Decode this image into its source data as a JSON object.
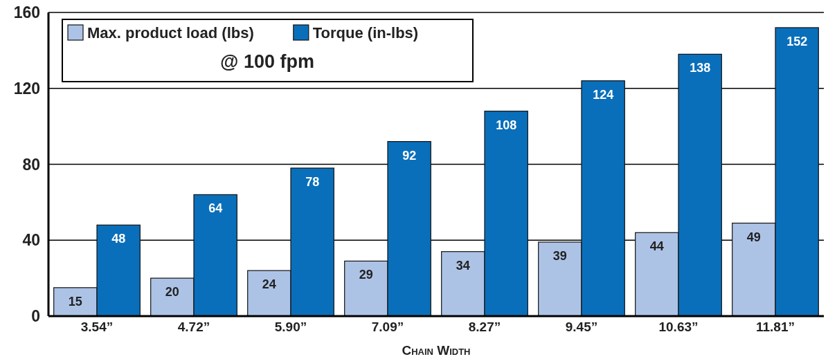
{
  "chart_data": {
    "type": "bar",
    "xlabel": "Chain Width",
    "legend_title": "@ 100 fpm",
    "categories": [
      "3.54”",
      "4.72”",
      "5.90”",
      "7.09”",
      "8.27”",
      "9.45”",
      "10.63”",
      "11.81”"
    ],
    "series": [
      {
        "name": "Max. product load (lbs)",
        "color": "#adc3e6",
        "values": [
          15,
          20,
          24,
          29,
          34,
          39,
          44,
          49
        ]
      },
      {
        "name": "Torque (in-lbs)",
        "color": "#0a6fba",
        "values": [
          48,
          64,
          78,
          92,
          108,
          124,
          138,
          152
        ]
      }
    ],
    "ylim": [
      0,
      160
    ],
    "yticks": [
      0,
      40,
      80,
      120,
      160
    ],
    "grid": "y",
    "legend": "top left",
    "data_labels": true
  }
}
